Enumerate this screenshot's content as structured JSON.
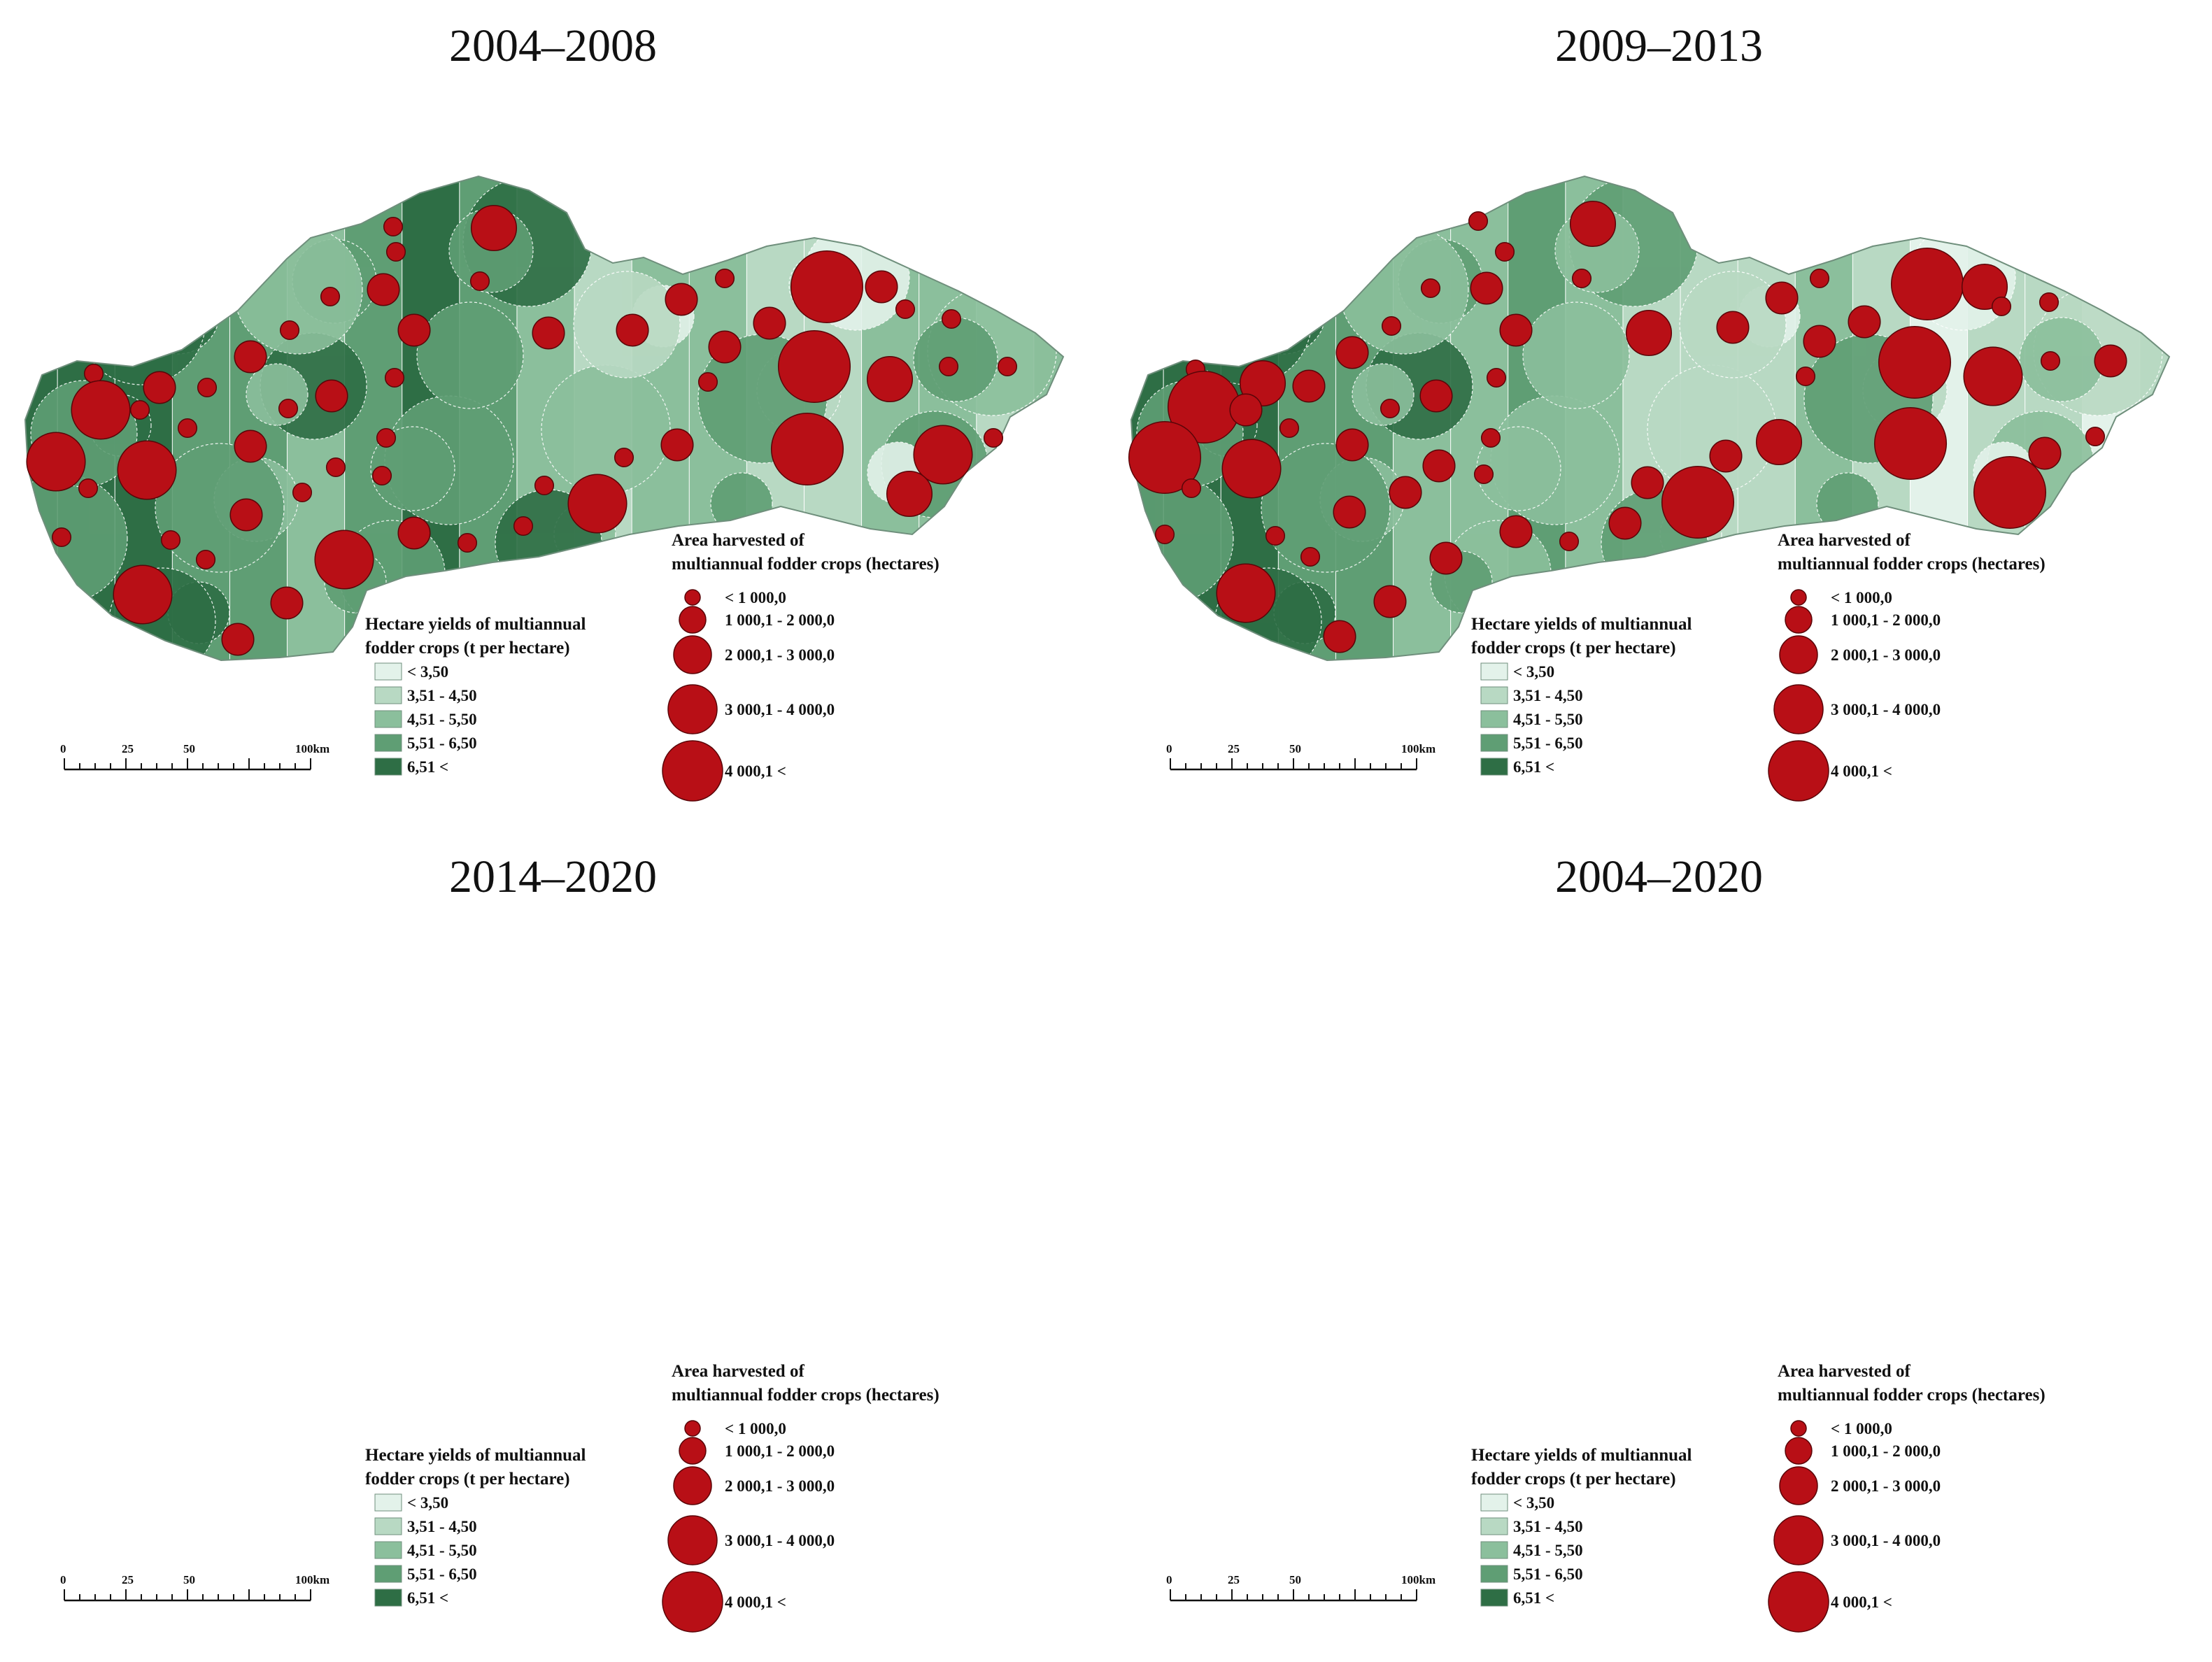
{
  "colors": {
    "yield_classes": [
      "#e3f2ea",
      "#b8d9c3",
      "#8bbf9c",
      "#5f9e74",
      "#2e6e45"
    ],
    "bubble": "#b80f16",
    "bubble_edge": "#5a0508"
  },
  "panels": [
    {
      "title": "2004–2008",
      "yield_legend": {
        "title_line1": "Hectare yields of multiannual",
        "title_line2": "fodder crops (t per hectare)",
        "classes": [
          "< 3,50",
          "3,51 - 4,50",
          "4,51 - 5,50",
          "5,51 - 6,50",
          "6,51 <"
        ]
      },
      "area_legend": {
        "title_line1": "Area harvested of",
        "title_line2": "multiannual fodder crops (hectares)",
        "classes": [
          "< 1 000,0",
          "1 000,1 - 2 000,0",
          "2 000,1 - 3 000,0",
          "3 000,1 - 4 000,0",
          "4 000,1 <"
        ]
      },
      "scale_bar": {
        "labels": [
          "0",
          "25",
          "50",
          "100km"
        ]
      }
    },
    {
      "title": "2009–2013",
      "yield_legend": {
        "title_line1": "Hectare yields of multiannual",
        "title_line2": "fodder crops (t per hectare)",
        "classes": [
          "< 3,50",
          "3,51 - 4,50",
          "4,51 - 5,50",
          "5,51 - 6,50",
          "6,51 <"
        ]
      },
      "area_legend": {
        "title_line1": "Area harvested of",
        "title_line2": "multiannual fodder crops (hectares)",
        "classes": [
          "< 1 000,0",
          "1 000,1 - 2 000,0",
          "2 000,1 - 3 000,0",
          "3 000,1 - 4 000,0",
          "4 000,1 <"
        ]
      },
      "scale_bar": {
        "labels": [
          "0",
          "25",
          "50",
          "100km"
        ]
      }
    },
    {
      "title": "2014–2020",
      "yield_legend": {
        "title_line1": "Hectare yields of multiannual",
        "title_line2": "fodder crops (t per hectare)",
        "classes": [
          "< 3,50",
          "3,51 - 4,50",
          "4,51 - 5,50",
          "5,51 - 6,50",
          "6,51 <"
        ]
      },
      "area_legend": {
        "title_line1": "Area harvested of",
        "title_line2": "multiannual fodder crops (hectares)",
        "classes": [
          "< 1 000,0",
          "1 000,1 - 2 000,0",
          "2 000,1 - 3 000,0",
          "3 000,1 - 4 000,0",
          "4 000,1 <"
        ]
      },
      "scale_bar": {
        "labels": [
          "0",
          "25",
          "50",
          "100km"
        ]
      }
    },
    {
      "title": "2004–2020",
      "yield_legend": {
        "title_line1": "Hectare yields of multiannual",
        "title_line2": "fodder crops (t per hectare)",
        "classes": [
          "< 3,50",
          "3,51 - 4,50",
          "4,51 - 5,50",
          "5,51 - 6,50",
          "6,51 <"
        ]
      },
      "area_legend": {
        "title_line1": "Area harvested of",
        "title_line2": "multiannual fodder crops (hectares)",
        "classes": [
          "< 1 000,0",
          "1 000,1 - 2 000,0",
          "2 000,1 - 3 000,0",
          "3 000,1 - 4 000,0",
          "4 000,1 <"
        ]
      },
      "scale_bar": {
        "labels": [
          "0",
          "25",
          "50",
          "100km"
        ]
      }
    }
  ]
}
